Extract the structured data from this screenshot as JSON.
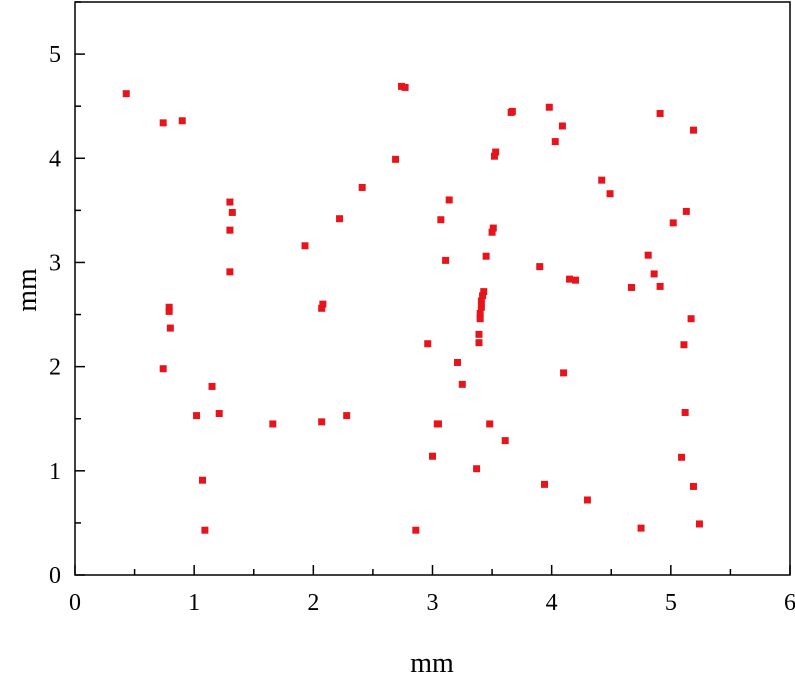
{
  "chart_data": {
    "type": "scatter",
    "title": "",
    "xlabel": "mm",
    "ylabel": "mm",
    "xlim": [
      0,
      6
    ],
    "ylim": [
      0,
      5.5
    ],
    "xticks": [
      "0",
      "1",
      "2",
      "3",
      "4",
      "5",
      "6"
    ],
    "yticks": [
      "0",
      "1",
      "2",
      "3",
      "4",
      "5"
    ],
    "grid": false,
    "legend": "none",
    "marker": "square",
    "marker_color": "#e8141c",
    "points": [
      {
        "x": 0.43,
        "y": 4.62
      },
      {
        "x": 0.74,
        "y": 4.34
      },
      {
        "x": 0.9,
        "y": 4.36
      },
      {
        "x": 0.74,
        "y": 1.98
      },
      {
        "x": 0.79,
        "y": 2.57
      },
      {
        "x": 0.79,
        "y": 2.53
      },
      {
        "x": 0.8,
        "y": 2.37
      },
      {
        "x": 1.02,
        "y": 1.53
      },
      {
        "x": 1.07,
        "y": 0.91
      },
      {
        "x": 1.09,
        "y": 0.43
      },
      {
        "x": 1.15,
        "y": 1.81
      },
      {
        "x": 1.21,
        "y": 1.55
      },
      {
        "x": 1.3,
        "y": 3.58
      },
      {
        "x": 1.3,
        "y": 3.31
      },
      {
        "x": 1.32,
        "y": 3.48
      },
      {
        "x": 1.3,
        "y": 2.91
      },
      {
        "x": 1.66,
        "y": 1.45
      },
      {
        "x": 1.93,
        "y": 3.16
      },
      {
        "x": 2.07,
        "y": 2.56
      },
      {
        "x": 2.08,
        "y": 2.6
      },
      {
        "x": 2.07,
        "y": 1.47
      },
      {
        "x": 2.22,
        "y": 3.42
      },
      {
        "x": 2.28,
        "y": 1.53
      },
      {
        "x": 2.41,
        "y": 3.72
      },
      {
        "x": 2.69,
        "y": 3.99
      },
      {
        "x": 2.74,
        "y": 4.69
      },
      {
        "x": 2.77,
        "y": 4.68
      },
      {
        "x": 2.86,
        "y": 0.43
      },
      {
        "x": 2.96,
        "y": 2.22
      },
      {
        "x": 3.0,
        "y": 1.14
      },
      {
        "x": 3.04,
        "y": 1.45
      },
      {
        "x": 3.05,
        "y": 1.45
      },
      {
        "x": 3.07,
        "y": 3.41
      },
      {
        "x": 3.11,
        "y": 3.02
      },
      {
        "x": 3.14,
        "y": 3.6
      },
      {
        "x": 3.21,
        "y": 2.04
      },
      {
        "x": 3.25,
        "y": 1.83
      },
      {
        "x": 3.37,
        "y": 1.02
      },
      {
        "x": 3.39,
        "y": 2.23
      },
      {
        "x": 3.39,
        "y": 2.31
      },
      {
        "x": 3.4,
        "y": 2.46
      },
      {
        "x": 3.4,
        "y": 2.51
      },
      {
        "x": 3.41,
        "y": 2.57
      },
      {
        "x": 3.41,
        "y": 2.63
      },
      {
        "x": 3.42,
        "y": 2.68
      },
      {
        "x": 3.43,
        "y": 2.72
      },
      {
        "x": 3.45,
        "y": 3.06
      },
      {
        "x": 3.48,
        "y": 1.45
      },
      {
        "x": 3.5,
        "y": 3.29
      },
      {
        "x": 3.51,
        "y": 3.33
      },
      {
        "x": 3.52,
        "y": 4.02
      },
      {
        "x": 3.53,
        "y": 4.06
      },
      {
        "x": 3.61,
        "y": 1.29
      },
      {
        "x": 3.66,
        "y": 4.44
      },
      {
        "x": 3.67,
        "y": 4.45
      },
      {
        "x": 3.9,
        "y": 2.96
      },
      {
        "x": 3.94,
        "y": 0.87
      },
      {
        "x": 3.98,
        "y": 4.49
      },
      {
        "x": 4.03,
        "y": 4.16
      },
      {
        "x": 4.09,
        "y": 4.31
      },
      {
        "x": 4.1,
        "y": 1.94
      },
      {
        "x": 4.15,
        "y": 2.84
      },
      {
        "x": 4.2,
        "y": 2.83
      },
      {
        "x": 4.3,
        "y": 0.72
      },
      {
        "x": 4.42,
        "y": 3.79
      },
      {
        "x": 4.49,
        "y": 3.66
      },
      {
        "x": 4.67,
        "y": 2.76
      },
      {
        "x": 4.75,
        "y": 0.45
      },
      {
        "x": 4.81,
        "y": 3.07
      },
      {
        "x": 4.86,
        "y": 2.89
      },
      {
        "x": 4.91,
        "y": 4.43
      },
      {
        "x": 4.91,
        "y": 2.77
      },
      {
        "x": 5.02,
        "y": 3.38
      },
      {
        "x": 5.09,
        "y": 1.13
      },
      {
        "x": 5.11,
        "y": 2.21
      },
      {
        "x": 5.12,
        "y": 1.56
      },
      {
        "x": 5.13,
        "y": 3.49
      },
      {
        "x": 5.17,
        "y": 2.46
      },
      {
        "x": 5.19,
        "y": 4.27
      },
      {
        "x": 5.19,
        "y": 0.85
      },
      {
        "x": 5.24,
        "y": 0.49
      }
    ]
  }
}
